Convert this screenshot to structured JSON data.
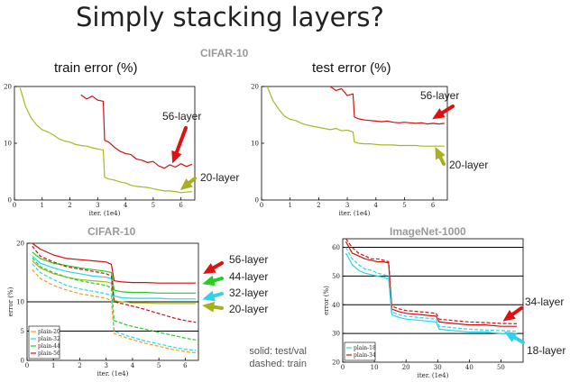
{
  "title": "Simply stacking layers?",
  "top": {
    "section_title": "CIFAR-10",
    "train_title": "train error (%)",
    "test_title": "test error (%)"
  },
  "bottom": {
    "cifar_title": "CIFAR-10",
    "imagenet_title": "ImageNet-1000",
    "note_line1": "solid: test/val",
    "note_line2": "dashed: train"
  },
  "colors": {
    "red": "#d01010",
    "olive": "#a8b820",
    "green": "#22cc22",
    "cyan": "#22d8ee",
    "orange": "#f0a020",
    "arrow_red": "#e01010",
    "arrow_olive": "#a8b020",
    "arrow_green": "#22d022",
    "arrow_cyan": "#30d0f0"
  },
  "chart_data": [
    {
      "type": "line",
      "title": "train error (%)",
      "xlabel": "iter. (1e4)",
      "ylabel": "",
      "xlim": [
        0,
        6.5
      ],
      "ylim": [
        0,
        20
      ],
      "xticks": [
        "0",
        "1",
        "2",
        "3",
        "4",
        "5",
        "6"
      ],
      "yticks": [
        "0",
        "10",
        "20"
      ],
      "series": [
        {
          "name": "56-layer",
          "style": "solid",
          "color": "red",
          "x": [
            2.4,
            2.6,
            2.8,
            3.0,
            3.2,
            3.25,
            3.4,
            3.6,
            3.8,
            4.0,
            4.2,
            4.4,
            4.6,
            4.8,
            5.0,
            5.2,
            5.4,
            5.6,
            5.8,
            6.0,
            6.2,
            6.4
          ],
          "y": [
            18.5,
            17.8,
            18.3,
            17.6,
            17.4,
            10.5,
            10.2,
            9.3,
            8.6,
            8.2,
            8.0,
            7.2,
            7.0,
            6.6,
            6.8,
            6.0,
            5.6,
            6.2,
            5.8,
            6.4,
            5.9,
            6.3
          ]
        },
        {
          "name": "20-layer",
          "style": "solid",
          "color": "olive",
          "x": [
            0.2,
            0.4,
            0.6,
            0.8,
            1.0,
            1.2,
            1.4,
            1.6,
            1.8,
            2.0,
            2.2,
            2.4,
            2.6,
            2.8,
            3.0,
            3.2,
            3.25,
            3.4,
            3.6,
            3.8,
            4.0,
            4.2,
            4.4,
            4.6,
            4.8,
            5.0,
            5.2,
            5.4,
            5.6,
            5.8,
            6.0,
            6.2,
            6.4
          ],
          "y": [
            19.8,
            16.5,
            14.5,
            13.2,
            12.4,
            12.0,
            11.5,
            10.8,
            10.4,
            10.2,
            9.8,
            9.6,
            9.5,
            9.2,
            9.0,
            8.8,
            4.0,
            3.7,
            3.5,
            3.2,
            3.0,
            2.6,
            2.4,
            2.3,
            2.2,
            2.0,
            1.8,
            1.6,
            1.6,
            1.5,
            1.3,
            1.4,
            1.5
          ]
        }
      ]
    },
    {
      "type": "line",
      "title": "test error (%)",
      "xlabel": "iter. (1e4)",
      "ylabel": "",
      "xlim": [
        0,
        6.5
      ],
      "ylim": [
        0,
        20
      ],
      "xticks": [
        "0",
        "1",
        "2",
        "3",
        "4",
        "5",
        "6"
      ],
      "yticks": [
        "0",
        "10",
        "20"
      ],
      "series": [
        {
          "name": "56-layer",
          "style": "solid",
          "color": "red",
          "x": [
            2.4,
            2.6,
            2.8,
            3.0,
            3.2,
            3.25,
            3.4,
            3.6,
            3.8,
            4.0,
            4.2,
            4.4,
            4.6,
            4.8,
            5.0,
            5.2,
            5.4,
            5.6,
            5.8,
            6.0,
            6.2,
            6.4
          ],
          "y": [
            20.0,
            19.3,
            19.6,
            18.4,
            18.7,
            14.6,
            14.3,
            14.1,
            14.0,
            13.9,
            13.8,
            13.9,
            13.7,
            13.6,
            13.7,
            13.6,
            13.5,
            13.6,
            13.4,
            13.5,
            13.4,
            13.5
          ]
        },
        {
          "name": "20-layer",
          "style": "solid",
          "color": "olive",
          "x": [
            0.2,
            0.4,
            0.6,
            0.8,
            1.0,
            1.2,
            1.4,
            1.6,
            1.8,
            2.0,
            2.2,
            2.4,
            2.6,
            2.8,
            3.0,
            3.2,
            3.25,
            3.4,
            3.6,
            3.8,
            4.0,
            4.2,
            4.4,
            4.6,
            4.8,
            5.0,
            5.2,
            5.4,
            5.6,
            5.8,
            6.0,
            6.2,
            6.4
          ],
          "y": [
            20.0,
            17.5,
            16.0,
            14.8,
            14.2,
            14.0,
            13.5,
            13.2,
            13.0,
            12.8,
            12.6,
            12.4,
            12.6,
            12.2,
            12.3,
            12.0,
            10.2,
            10.0,
            9.9,
            9.9,
            9.8,
            9.7,
            9.7,
            9.7,
            9.6,
            9.6,
            9.6,
            9.6,
            9.5,
            9.5,
            9.5,
            9.5,
            9.5
          ]
        }
      ]
    },
    {
      "type": "line",
      "title": "CIFAR-10",
      "xlabel": "iter. (1e4)",
      "ylabel": "error (%)",
      "xlim": [
        0,
        6.5
      ],
      "ylim": [
        0,
        20
      ],
      "xticks": [
        "0",
        "1",
        "2",
        "3",
        "4",
        "5",
        "6"
      ],
      "yticks": [
        "0",
        "5",
        "10",
        "20"
      ],
      "legend": {
        "placement": "bottom-left",
        "entries": [
          "plain-20",
          "plain-32",
          "plain-44",
          "plain-56"
        ]
      },
      "series": [
        {
          "name": "plain-56",
          "style": "solid",
          "color": "red",
          "x": [
            0.2,
            0.5,
            1.0,
            1.5,
            2.0,
            2.5,
            3.0,
            3.2,
            3.3,
            3.6,
            4.0,
            4.5,
            5.0,
            5.5,
            6.0,
            6.4
          ],
          "y": [
            20.0,
            19.0,
            18.0,
            17.4,
            17.2,
            17.0,
            16.8,
            16.4,
            13.6,
            13.4,
            13.3,
            13.3,
            13.2,
            13.2,
            13.2,
            13.2
          ]
        },
        {
          "name": "plain-44",
          "style": "solid",
          "color": "green",
          "x": [
            0.2,
            0.5,
            1.0,
            1.5,
            2.0,
            2.5,
            3.0,
            3.2,
            3.3,
            3.6,
            4.0,
            4.5,
            5.0,
            5.5,
            6.0,
            6.4
          ],
          "y": [
            18.5,
            17.4,
            16.6,
            16.2,
            15.8,
            15.5,
            15.2,
            15.0,
            12.0,
            11.7,
            11.6,
            11.6,
            11.5,
            11.5,
            11.5,
            11.5
          ]
        },
        {
          "name": "plain-32",
          "style": "solid",
          "color": "cyan",
          "x": [
            0.2,
            0.5,
            1.0,
            1.5,
            2.0,
            2.5,
            3.0,
            3.2,
            3.3,
            3.6,
            4.0,
            4.5,
            5.0,
            5.5,
            6.0,
            6.4
          ],
          "y": [
            17.8,
            16.6,
            15.8,
            15.2,
            14.8,
            14.4,
            14.2,
            14.0,
            11.0,
            10.7,
            10.6,
            10.6,
            10.6,
            10.5,
            10.5,
            10.5
          ]
        },
        {
          "name": "plain-20",
          "style": "solid",
          "color": "olive",
          "x": [
            0.2,
            0.5,
            1.0,
            1.5,
            2.0,
            2.5,
            3.0,
            3.2,
            3.3,
            3.6,
            4.0,
            4.5,
            5.0,
            5.5,
            6.0,
            6.4
          ],
          "y": [
            17.0,
            15.8,
            14.8,
            14.2,
            13.8,
            13.6,
            13.4,
            13.2,
            10.2,
            10.0,
            9.8,
            9.8,
            9.7,
            9.7,
            9.7,
            9.7
          ]
        },
        {
          "name": "plain-56",
          "style": "dashed",
          "color": "red",
          "x": [
            0.2,
            0.5,
            1.0,
            1.5,
            2.0,
            2.5,
            3.0,
            3.2,
            3.3,
            3.8,
            4.4,
            5.0,
            5.6,
            6.0,
            6.4
          ],
          "y": [
            19.5,
            17.8,
            16.8,
            16.0,
            15.6,
            15.2,
            14.8,
            14.4,
            10.0,
            9.5,
            8.8,
            8.0,
            7.2,
            6.8,
            6.5
          ]
        },
        {
          "name": "plain-44",
          "style": "dashed",
          "color": "green",
          "x": [
            0.2,
            0.5,
            1.0,
            1.5,
            2.0,
            2.5,
            3.0,
            3.2,
            3.3,
            3.8,
            4.4,
            5.0,
            5.6,
            6.0,
            6.4
          ],
          "y": [
            17.5,
            16.0,
            15.0,
            14.2,
            13.6,
            13.2,
            12.8,
            12.4,
            6.8,
            6.0,
            5.4,
            4.8,
            4.2,
            3.8,
            3.5
          ]
        },
        {
          "name": "plain-32",
          "style": "dashed",
          "color": "cyan",
          "x": [
            0.2,
            0.5,
            1.0,
            1.5,
            2.0,
            2.5,
            3.0,
            3.2,
            3.3,
            3.8,
            4.4,
            5.0,
            5.6,
            6.0,
            6.4
          ],
          "y": [
            16.5,
            15.0,
            13.8,
            12.8,
            12.2,
            11.8,
            11.4,
            11.0,
            5.0,
            4.2,
            3.4,
            2.8,
            2.2,
            1.9,
            1.7
          ]
        },
        {
          "name": "plain-20",
          "style": "dashed",
          "color": "orange",
          "x": [
            0.2,
            0.5,
            1.0,
            1.5,
            2.0,
            2.5,
            3.0,
            3.2,
            3.3,
            3.8,
            4.4,
            5.0,
            5.6,
            6.0,
            6.4
          ],
          "y": [
            15.5,
            14.0,
            12.8,
            12.0,
            11.4,
            11.0,
            10.6,
            10.2,
            4.6,
            3.8,
            3.0,
            2.4,
            1.8,
            1.5,
            1.3
          ]
        }
      ]
    },
    {
      "type": "line",
      "title": "ImageNet-1000",
      "xlabel": "iter. (1e4)",
      "ylabel": "error (%)",
      "xlim": [
        0,
        57
      ],
      "ylim": [
        20,
        63
      ],
      "xticks": [
        "0",
        "10",
        "20",
        "30",
        "40",
        "50"
      ],
      "yticks": [
        "20",
        "30",
        "40",
        "50",
        "60"
      ],
      "legend": {
        "placement": "bottom-left",
        "entries": [
          "plain-18",
          "plain-34"
        ]
      },
      "series": [
        {
          "name": "plain-34",
          "style": "solid",
          "color": "red",
          "x": [
            1,
            3,
            5,
            7,
            9,
            11,
            13,
            14.5,
            15.5,
            18,
            20,
            25,
            29.5,
            30.5,
            35,
            40,
            45,
            50,
            55
          ],
          "y": [
            62,
            58,
            57,
            56,
            55.5,
            55,
            55,
            54.5,
            38.5,
            37.5,
            37,
            36.5,
            36,
            34,
            33.5,
            33,
            33,
            32.5,
            32.5
          ]
        },
        {
          "name": "plain-18",
          "style": "solid",
          "color": "cyan",
          "x": [
            1,
            3,
            5,
            7,
            9,
            11,
            13,
            14.5,
            15.5,
            18,
            20,
            25,
            29.5,
            30.5,
            35,
            40,
            45,
            50,
            55
          ],
          "y": [
            58,
            54,
            52,
            51,
            50.5,
            50,
            49.5,
            49,
            36.5,
            35.5,
            35,
            34.5,
            34,
            31.5,
            31,
            30.5,
            30.5,
            30,
            30
          ]
        },
        {
          "name": "plain-34",
          "style": "dashed",
          "color": "red",
          "x": [
            1,
            3,
            5,
            7,
            9,
            11,
            13,
            14.5,
            15.5,
            18,
            20,
            25,
            29.5,
            30.5,
            35,
            40,
            45,
            50,
            55
          ],
          "y": [
            63,
            60,
            58,
            57,
            56,
            56,
            55.5,
            55,
            39.5,
            38.5,
            38,
            37.5,
            37,
            35,
            34.5,
            34,
            33.8,
            33.5,
            33.4
          ]
        },
        {
          "name": "plain-18",
          "style": "dashed",
          "color": "cyan",
          "x": [
            1,
            3,
            5,
            7,
            9,
            11,
            13,
            14.5,
            15.5,
            18,
            20,
            25,
            29.5,
            30.5,
            35,
            40,
            45,
            50,
            55
          ],
          "y": [
            60,
            56,
            54,
            52.5,
            52,
            51,
            50.5,
            50,
            37.5,
            36.5,
            36,
            35.5,
            35,
            32.5,
            32,
            31.5,
            31.2,
            31,
            30.8
          ]
        }
      ]
    }
  ],
  "annotations": {
    "train_56": "56-layer",
    "train_20": "20-layer",
    "test_56": "56-layer",
    "test_20": "20-layer",
    "cifar_56": "56-layer",
    "cifar_44": "44-layer",
    "cifar_32": "32-layer",
    "cifar_20": "20-layer",
    "imagenet_34": "34-layer",
    "imagenet_18": "18-layer"
  }
}
